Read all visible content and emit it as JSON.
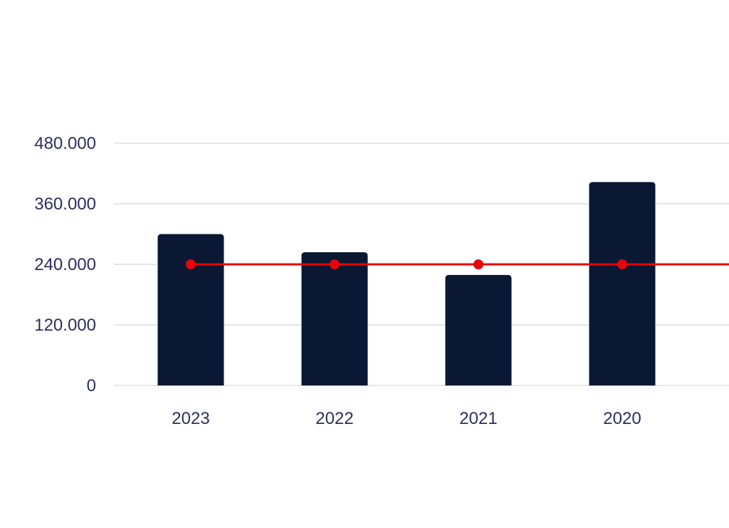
{
  "chart_data": {
    "type": "bar",
    "categories": [
      "2023",
      "2022",
      "2021",
      "2020"
    ],
    "series": [
      {
        "type": "bar",
        "values": [
          300000,
          264000,
          219000,
          403000
        ],
        "color": "#0a1834"
      },
      {
        "type": "line",
        "values": [
          240000,
          240000,
          240000,
          240000
        ],
        "color": "#e5060a"
      }
    ],
    "yticks": [
      "0",
      "120.000",
      "240.000",
      "360.000",
      "480.000"
    ],
    "ytick_values": [
      0,
      120000,
      240000,
      360000,
      480000
    ],
    "ylim": [
      0,
      480000
    ],
    "title": "",
    "xlabel": "",
    "ylabel": "",
    "grid": true,
    "gridline_color": "#e6e6ea",
    "text_color": "#2e2d5f"
  }
}
